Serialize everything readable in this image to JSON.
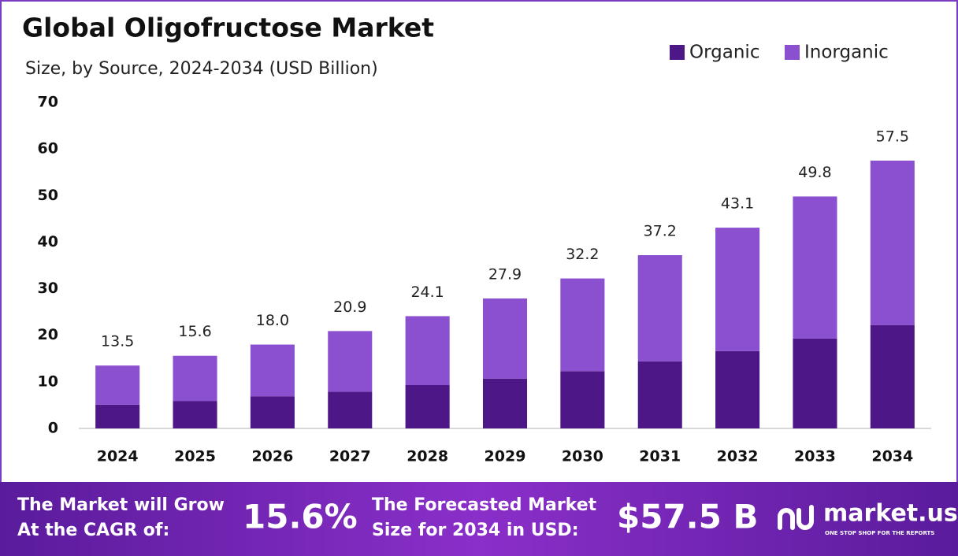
{
  "chart_data": {
    "type": "stacked_bar",
    "title": "Global Oligofructose Market",
    "subtitle": "Size, by Source, 2024-2034 (USD Billion)",
    "categories": [
      "2024",
      "2025",
      "2026",
      "2027",
      "2028",
      "2029",
      "2030",
      "2031",
      "2032",
      "2033",
      "2034"
    ],
    "series": [
      {
        "name": "Organic",
        "color": "#4e1787",
        "values": [
          5.1,
          5.9,
          6.9,
          7.9,
          9.3,
          10.7,
          12.3,
          14.4,
          16.6,
          19.3,
          22.2
        ]
      },
      {
        "name": "Inorganic",
        "color": "#8b50d0",
        "values": [
          8.4,
          9.7,
          11.1,
          13.0,
          14.8,
          17.2,
          19.9,
          22.8,
          26.5,
          30.5,
          35.3
        ]
      }
    ],
    "totals": [
      13.5,
      15.6,
      18.0,
      20.9,
      24.1,
      27.9,
      32.2,
      37.2,
      43.1,
      49.8,
      57.5
    ],
    "value_labels": [
      "13.5",
      "15.6",
      "18.0",
      "20.9",
      "24.1",
      "27.9",
      "32.2",
      "37.2",
      "43.1",
      "49.8",
      "57.5"
    ],
    "ylim": [
      0,
      70
    ],
    "yticks": [
      0,
      10,
      20,
      30,
      40,
      50,
      60,
      70
    ],
    "grid": false,
    "legend": "top-right"
  },
  "footer": {
    "cagr_text": [
      "The Market will Grow",
      "At the CAGR of:"
    ],
    "cagr_value": "15.6%",
    "forecast_text": [
      "The Forecasted Market",
      "Size for 2034 in USD:"
    ],
    "forecast_value": "$57.5 B",
    "brand": "market.us",
    "tagline": "ONE STOP SHOP FOR THE REPORTS"
  }
}
